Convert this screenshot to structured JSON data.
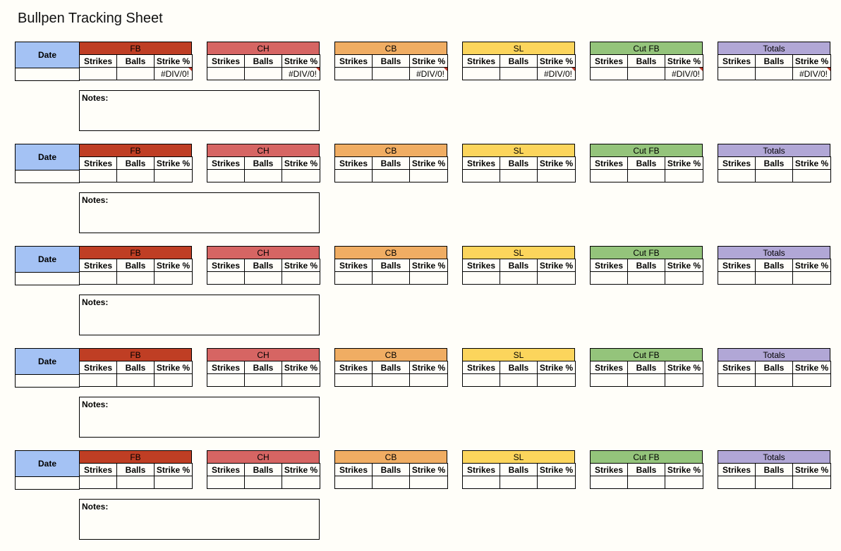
{
  "title": "Bullpen Tracking Sheet",
  "labels": {
    "date": "Date",
    "strikes": "Strikes",
    "balls": "Balls",
    "strike_pct": "Strike %",
    "notes": "Notes:"
  },
  "pitch_types": [
    {
      "name": "FB",
      "color": "#bf3e24"
    },
    {
      "name": "CH",
      "color": "#d66563"
    },
    {
      "name": "CB",
      "color": "#f0ad63"
    },
    {
      "name": "SL",
      "color": "#fcd55c"
    },
    {
      "name": "Cut FB",
      "color": "#94c47b"
    },
    {
      "name": "Totals",
      "color": "#b1a7d6"
    }
  ],
  "sessions": [
    {
      "date": "",
      "notes": "",
      "rows": [
        {
          "strikes": "",
          "balls": "",
          "strike_pct": "#DIV/0!"
        },
        {
          "strikes": "",
          "balls": "",
          "strike_pct": "#DIV/0!"
        },
        {
          "strikes": "",
          "balls": "",
          "strike_pct": "#DIV/0!"
        },
        {
          "strikes": "",
          "balls": "",
          "strike_pct": "#DIV/0!"
        },
        {
          "strikes": "",
          "balls": "",
          "strike_pct": "#DIV/0!"
        },
        {
          "strikes": "",
          "balls": "",
          "strike_pct": "#DIV/0!"
        }
      ]
    },
    {
      "date": "",
      "notes": "",
      "rows": [
        {
          "strikes": "",
          "balls": "",
          "strike_pct": ""
        },
        {
          "strikes": "",
          "balls": "",
          "strike_pct": ""
        },
        {
          "strikes": "",
          "balls": "",
          "strike_pct": ""
        },
        {
          "strikes": "",
          "balls": "",
          "strike_pct": ""
        },
        {
          "strikes": "",
          "balls": "",
          "strike_pct": ""
        },
        {
          "strikes": "",
          "balls": "",
          "strike_pct": ""
        }
      ]
    },
    {
      "date": "",
      "notes": "",
      "rows": [
        {
          "strikes": "",
          "balls": "",
          "strike_pct": ""
        },
        {
          "strikes": "",
          "balls": "",
          "strike_pct": ""
        },
        {
          "strikes": "",
          "balls": "",
          "strike_pct": ""
        },
        {
          "strikes": "",
          "balls": "",
          "strike_pct": ""
        },
        {
          "strikes": "",
          "balls": "",
          "strike_pct": ""
        },
        {
          "strikes": "",
          "balls": "",
          "strike_pct": ""
        }
      ]
    },
    {
      "date": "",
      "notes": "",
      "rows": [
        {
          "strikes": "",
          "balls": "",
          "strike_pct": ""
        },
        {
          "strikes": "",
          "balls": "",
          "strike_pct": ""
        },
        {
          "strikes": "",
          "balls": "",
          "strike_pct": ""
        },
        {
          "strikes": "",
          "balls": "",
          "strike_pct": ""
        },
        {
          "strikes": "",
          "balls": "",
          "strike_pct": ""
        },
        {
          "strikes": "",
          "balls": "",
          "strike_pct": ""
        }
      ]
    },
    {
      "date": "",
      "notes": "",
      "rows": [
        {
          "strikes": "",
          "balls": "",
          "strike_pct": ""
        },
        {
          "strikes": "",
          "balls": "",
          "strike_pct": ""
        },
        {
          "strikes": "",
          "balls": "",
          "strike_pct": ""
        },
        {
          "strikes": "",
          "balls": "",
          "strike_pct": ""
        },
        {
          "strikes": "",
          "balls": "",
          "strike_pct": ""
        },
        {
          "strikes": "",
          "balls": "",
          "strike_pct": ""
        }
      ]
    }
  ]
}
